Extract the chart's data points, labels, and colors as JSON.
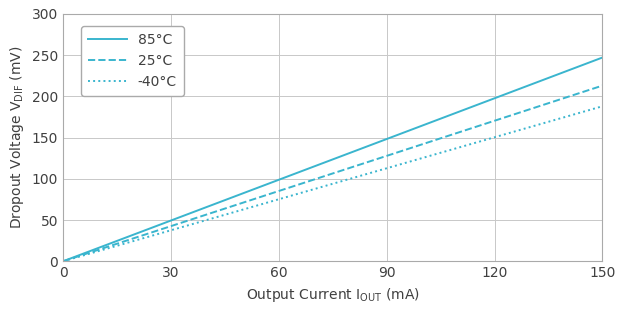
{
  "xlim": [
    0,
    150
  ],
  "ylim": [
    0,
    300
  ],
  "xticks": [
    0,
    30,
    60,
    90,
    120,
    150
  ],
  "yticks": [
    0,
    50,
    100,
    150,
    200,
    250,
    300
  ],
  "line_color": "#3ab5ce",
  "lines": [
    {
      "label": "85°C",
      "style": "solid",
      "slope": 1.647
    },
    {
      "label": "25°C",
      "style": "dashed",
      "slope": 1.42
    },
    {
      "label": "-40°C",
      "style": "dotted",
      "slope": 1.253
    }
  ],
  "grid_color": "#c8c8c8",
  "background_color": "#ffffff",
  "figure_bg": "#ffffff",
  "xlabel_fontsize": 10,
  "ylabel_fontsize": 10,
  "tick_fontsize": 10,
  "legend_fontsize": 10,
  "spine_color": "#aaaaaa",
  "text_color": "#404040"
}
